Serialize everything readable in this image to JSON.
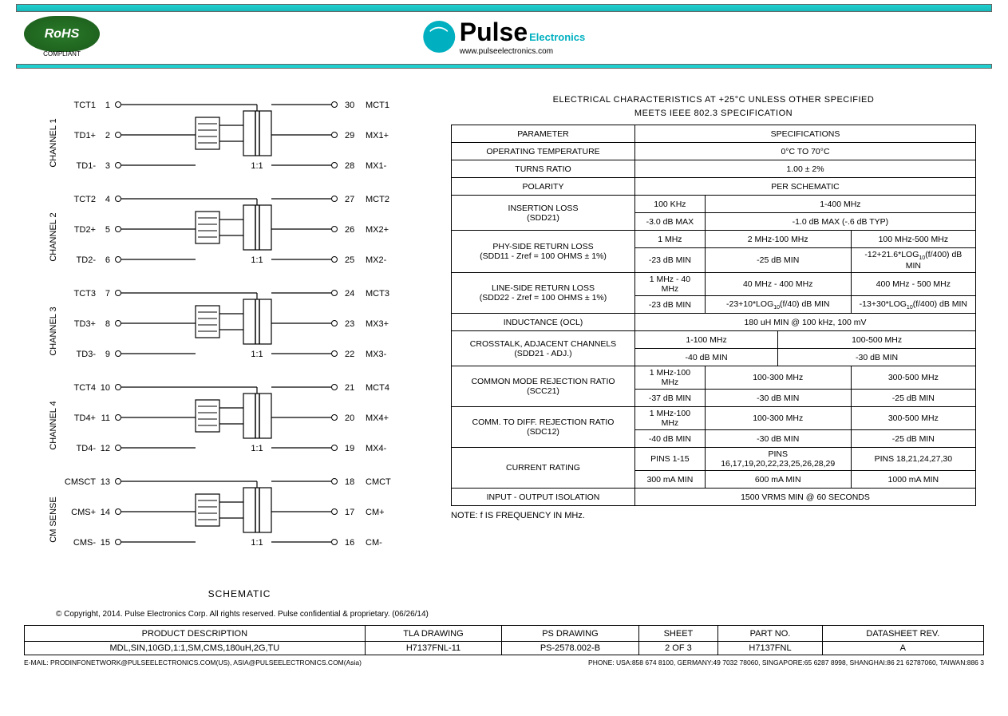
{
  "header": {
    "rohs_text": "RoHS",
    "rohs_compliant": "COMPLIANT",
    "brand": "Pulse",
    "brand_sub": "Electronics",
    "url": "www.pulseelectronics.com"
  },
  "schematic": {
    "title": "SCHEMATIC",
    "ratio_label": "1:1",
    "channels": [
      {
        "label": "CHANNEL 1",
        "pins": [
          {
            "lname": "TCT1",
            "lnum": "1",
            "rnum": "30",
            "rname": "MCT1"
          },
          {
            "lname": "TD1+",
            "lnum": "2",
            "rnum": "29",
            "rname": "MX1+"
          },
          {
            "lname": "TD1-",
            "lnum": "3",
            "rnum": "28",
            "rname": "MX1-"
          }
        ]
      },
      {
        "label": "CHANNEL 2",
        "pins": [
          {
            "lname": "TCT2",
            "lnum": "4",
            "rnum": "27",
            "rname": "MCT2"
          },
          {
            "lname": "TD2+",
            "lnum": "5",
            "rnum": "26",
            "rname": "MX2+"
          },
          {
            "lname": "TD2-",
            "lnum": "6",
            "rnum": "25",
            "rname": "MX2-"
          }
        ]
      },
      {
        "label": "CHANNEL 3",
        "pins": [
          {
            "lname": "TCT3",
            "lnum": "7",
            "rnum": "24",
            "rname": "MCT3"
          },
          {
            "lname": "TD3+",
            "lnum": "8",
            "rnum": "23",
            "rname": "MX3+"
          },
          {
            "lname": "TD3-",
            "lnum": "9",
            "rnum": "22",
            "rname": "MX3-"
          }
        ]
      },
      {
        "label": "CHANNEL 4",
        "pins": [
          {
            "lname": "TCT4",
            "lnum": "10",
            "rnum": "21",
            "rname": "MCT4"
          },
          {
            "lname": "TD4+",
            "lnum": "11",
            "rnum": "20",
            "rname": "MX4+"
          },
          {
            "lname": "TD4-",
            "lnum": "12",
            "rnum": "19",
            "rname": "MX4-"
          }
        ]
      },
      {
        "label": "CM SENSE",
        "pins": [
          {
            "lname": "CMSCT",
            "lnum": "13",
            "rnum": "18",
            "rname": "CMCT"
          },
          {
            "lname": "CMS+",
            "lnum": "14",
            "rnum": "17",
            "rname": "CM+"
          },
          {
            "lname": "CMS-",
            "lnum": "15",
            "rnum": "16",
            "rname": "CM-"
          }
        ]
      }
    ]
  },
  "specs": {
    "title1": "ELECTRICAL CHARACTERISTICS AT +25°C UNLESS OTHER SPECIFIED",
    "title2": "MEETS IEEE 802.3 SPECIFICATION",
    "hdr_param": "PARAMETER",
    "hdr_spec": "SPECIFICATIONS",
    "op_temp_p": "OPERATING TEMPERATURE",
    "op_temp_v": "0°C TO 70°C",
    "turns_p": "TURNS RATIO",
    "turns_v": "1.00 ± 2%",
    "polarity_p": "POLARITY",
    "polarity_v": "PER SCHEMATIC",
    "iloss_p1": "INSERTION LOSS",
    "iloss_p2": "(SDD21)",
    "iloss_f1": "100 KHz",
    "iloss_f2": "1-400 MHz",
    "iloss_v1": "-3.0 dB MAX",
    "iloss_v2": "-1.0 dB MAX (-.6 dB TYP)",
    "phy_p1": "PHY-SIDE RETURN LOSS",
    "phy_p2": "(SDD11 - Zref = 100 OHMS ± 1%)",
    "phy_f1": "1 MHz",
    "phy_f2": "2 MHz-100 MHz",
    "phy_f3": "100 MHz-500 MHz",
    "phy_v1": "-23 dB MIN",
    "phy_v2": "-25 dB MIN",
    "phy_v3html": "-12+21.6*LOG<sub>10</sub>(f/400) dB MIN",
    "line_p1": "LINE-SIDE RETURN LOSS",
    "line_p2": "(SDD22 - Zref = 100 OHMS ± 1%)",
    "line_f1": "1 MHz - 40 MHz",
    "line_f2": "40 MHz - 400 MHz",
    "line_f3": "400 MHz - 500 MHz",
    "line_v1": "-23 dB MIN",
    "line_v2html": "-23+10*LOG<sub>10</sub>(f/40) dB MIN",
    "line_v3html": "-13+30*LOG<sub>10</sub>(f/400) dB MIN",
    "ind_p": "INDUCTANCE (OCL)",
    "ind_v": "180 uH MIN @ 100 kHz, 100 mV",
    "xtalk_p1": "CROSSTALK, ADJACENT CHANNELS",
    "xtalk_p2": "(SDD21 - ADJ.)",
    "xtalk_f1": "1-100 MHz",
    "xtalk_f2": "100-500 MHz",
    "xtalk_v1": "-40 dB MIN",
    "xtalk_v2": "-30 dB MIN",
    "cmrr_p1": "COMMON MODE REJECTION RATIO",
    "cmrr_p2": "(SCC21)",
    "cmrr_f1": "1 MHz-100 MHz",
    "cmrr_f2": "100-300 MHz",
    "cmrr_f3": "300-500 MHz",
    "cmrr_v1": "-37 dB MIN",
    "cmrr_v2": "-30 dB MIN",
    "cmrr_v3": "-25 dB MIN",
    "cdrr_p1": "COMM. TO DIFF. REJECTION RATIO",
    "cdrr_p2": "(SDC12)",
    "cdrr_f1": "1 MHz-100 MHz",
    "cdrr_f2": "100-300 MHz",
    "cdrr_f3": "300-500 MHz",
    "cdrr_v1": "-40 dB MIN",
    "cdrr_v2": "-30 dB MIN",
    "cdrr_v3": "-25 dB MIN",
    "curr_p": "CURRENT RATING",
    "curr_f1": "PINS 1-15",
    "curr_f2": "PINS 16,17,19,20,22,23,25,26,28,29",
    "curr_f3": "PINS 18,21,24,27,30",
    "curr_v1": "300 mA MIN",
    "curr_v2": "600 mA MIN",
    "curr_v3": "1000 mA MIN",
    "iso_p": "INPUT - OUTPUT ISOLATION",
    "iso_v": "1500 VRMS MIN @ 60 SECONDS",
    "note": "NOTE: f IS FREQUENCY IN MHz."
  },
  "copyright": "© Copyright, 2014. Pulse Electronics Corp. All rights reserved. Pulse confidential & proprietary. (06/26/14)",
  "footer": {
    "h1": "PRODUCT DESCRIPTION",
    "h2": "TLA DRAWING",
    "h3": "PS DRAWING",
    "h4": "SHEET",
    "h5": "PART NO.",
    "h6": "DATASHEET REV.",
    "v1": "MDL,SIN,10GD,1:1,SM,CMS,180uH,2G,TU",
    "v2": "H7137FNL-11",
    "v3": "PS-2578.002-B",
    "v4": "2 OF 3",
    "v5": "H7137FNL",
    "v6": "A"
  },
  "contact": {
    "email": "E-MAIL: PRODINFONETWORK@PULSEELECTRONICS.COM(US), ASIA@PULSEELECTRONICS.COM(Asia)",
    "phone": "PHONE: USA:858 674 8100, GERMANY:49 7032 78060, SINGAPORE:65 6287 8998, SHANGHAI:86 21 62787060, TAIWAN:886 3"
  },
  "style": {
    "accent": "#20d0d0",
    "text": "#000000",
    "page_bg": "#ffffff"
  }
}
